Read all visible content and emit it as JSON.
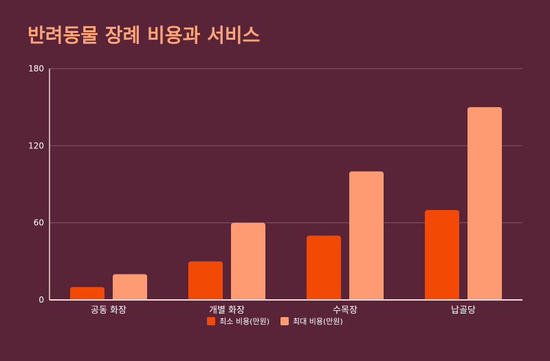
{
  "title": "반려동물 장례 비용과 서비스",
  "colors": {
    "background": "#5a2438",
    "title": "#ffa57a",
    "axis": "#f3d9d9",
    "grid": "#8a5566"
  },
  "chart_data": {
    "type": "bar",
    "categories": [
      "공동 화장",
      "개별 화장",
      "수목장",
      "납골당"
    ],
    "series": [
      {
        "name": "최소 비용(만원)",
        "color": "#f24a04",
        "values": [
          10,
          30,
          50,
          70
        ]
      },
      {
        "name": "최대 비용(만원)",
        "color": "#ff9b73",
        "values": [
          20,
          60,
          100,
          150
        ]
      }
    ],
    "yticks": [
      "0",
      "60",
      "120",
      "180"
    ],
    "ylim": [
      0,
      180
    ],
    "grid": true,
    "legend_position": "bottom"
  }
}
